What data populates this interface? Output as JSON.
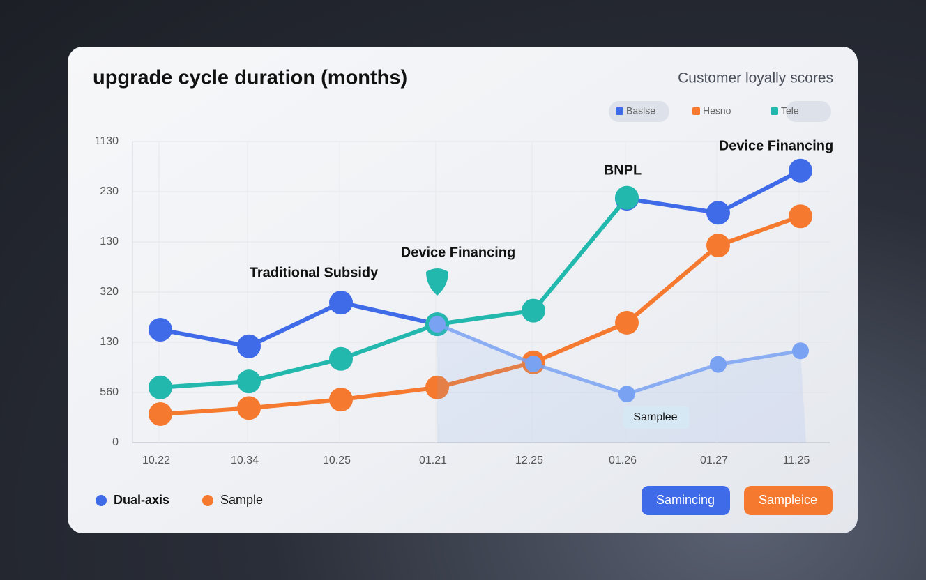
{
  "chart_data": {
    "type": "line",
    "title": "upgrade cycle duration (months)",
    "subtitle": "Customer loyally scores",
    "categories": [
      "10.22",
      "10.34",
      "10.25",
      "01.21",
      "12.25",
      "01.26",
      "01.27",
      "11.25"
    ],
    "series": [
      {
        "name": "Baslse",
        "color": "#3f6ae8",
        "values": [
          2.25,
          1.92,
          2.79,
          2.36,
          null,
          4.86,
          4.58,
          5.42
        ]
      },
      {
        "name": "Hesno",
        "color": "#f57a30",
        "values": [
          0.57,
          0.69,
          0.86,
          1.1,
          1.6,
          2.39,
          3.93,
          4.51
        ]
      },
      {
        "name": "Tele",
        "color": "#23b8ae",
        "values": [
          1.1,
          1.22,
          1.67,
          2.36,
          2.63,
          4.88,
          null,
          null
        ]
      },
      {
        "color": "#7aa2f2",
        "area": true,
        "values": [
          null,
          null,
          null,
          2.36,
          1.57,
          0.97,
          1.56,
          1.83
        ]
      }
    ],
    "ylim": [
      0,
      6
    ],
    "yticks": [
      {
        "value": 0,
        "label": "0"
      },
      {
        "value": 1,
        "label": "560"
      },
      {
        "value": 2,
        "label": "130"
      },
      {
        "value": 3,
        "label": "320"
      },
      {
        "value": 4,
        "label": "130"
      },
      {
        "value": 5,
        "label": "230"
      },
      {
        "value": 6,
        "label": "1130"
      }
    ],
    "grid": true,
    "annotations": [
      "Traditional Subsidy",
      "Device Financing",
      "BNPL",
      "Device Financing",
      "Samplee"
    ],
    "legend2": [
      "Dual-axis",
      "Sample"
    ],
    "buttons": [
      "Samincing",
      "Sampleice"
    ]
  }
}
